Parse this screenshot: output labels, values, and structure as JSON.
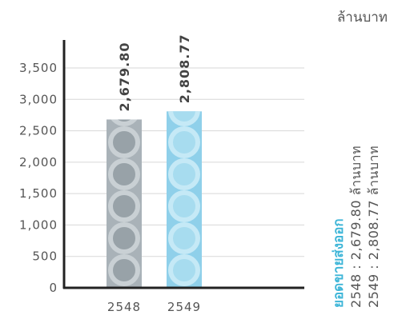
{
  "unit_label": "ล้านบาท",
  "side_note": {
    "title": "ยอดขายส่งออก",
    "lines": [
      "2548 : 2,679.80 ล้านบาท",
      "2549 : 2,808.77 ล้านบาท"
    ]
  },
  "chart_data": {
    "type": "bar",
    "categories": [
      "2548",
      "2549"
    ],
    "values": [
      2679.8,
      2808.77
    ],
    "value_labels": [
      "2,679.80",
      "2,808.77"
    ],
    "ylim": [
      0,
      3500
    ],
    "yticks": [
      0,
      500,
      1000,
      1500,
      2000,
      2500,
      3000,
      3500
    ],
    "ytick_labels": [
      "0",
      "500",
      "1,000",
      "1,500",
      "2,000",
      "2,500",
      "3,000",
      "3,500"
    ],
    "grid": true,
    "colors": [
      "#a9b2b8",
      "#8fd0ea"
    ],
    "ring_colors": [
      "#c9d0d4",
      "#c5e9f6"
    ],
    "dot_colors": [
      "#98a2a8",
      "#a7dcef"
    ]
  }
}
